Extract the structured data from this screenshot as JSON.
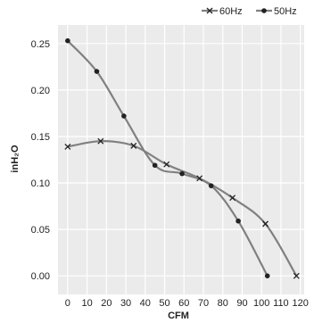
{
  "chart_data": {
    "type": "line",
    "xlabel": "CFM",
    "ylabel": "inH₂O",
    "xlim": [
      -5,
      122
    ],
    "ylim": [
      -0.02,
      0.27
    ],
    "xticks": [
      "0",
      "10",
      "20",
      "30",
      "40",
      "50",
      "60",
      "70",
      "80",
      "90",
      "100",
      "110",
      "120"
    ],
    "yticks": [
      "0.00",
      "0.05",
      "0.10",
      "0.15",
      "0.20",
      "0.25"
    ],
    "grid": true,
    "legend_position": "top-right",
    "colors": {
      "line": "#808080",
      "marker": "#222222",
      "grid": "#ffffff",
      "plot_bg": "#ebebeb"
    },
    "series": [
      {
        "name": "60Hz",
        "marker": "x",
        "points": [
          [
            0,
            0.139
          ],
          [
            17,
            0.145
          ],
          [
            34,
            0.14
          ],
          [
            51,
            0.12
          ],
          [
            68,
            0.105
          ],
          [
            85,
            0.084
          ],
          [
            102,
            0.056
          ],
          [
            118,
            0.0
          ]
        ],
        "markers": [
          [
            0,
            0.139
          ],
          [
            17,
            0.145
          ],
          [
            34,
            0.14
          ],
          [
            51,
            0.12
          ],
          [
            68,
            0.105
          ],
          [
            85,
            0.084
          ],
          [
            102,
            0.056
          ],
          [
            118,
            0.0
          ]
        ]
      },
      {
        "name": "50Hz",
        "marker": "dot",
        "points": [
          [
            0,
            0.253
          ],
          [
            15,
            0.22
          ],
          [
            29,
            0.172
          ],
          [
            45,
            0.119
          ],
          [
            59,
            0.11
          ],
          [
            74,
            0.097
          ],
          [
            88,
            0.059
          ],
          [
            103,
            0.0
          ]
        ],
        "markers": [
          [
            0,
            0.253
          ],
          [
            15,
            0.22
          ],
          [
            29,
            0.172
          ],
          [
            45,
            0.119
          ],
          [
            59,
            0.11
          ],
          [
            74,
            0.097
          ],
          [
            88,
            0.059
          ],
          [
            103,
            0.0
          ]
        ]
      }
    ]
  }
}
